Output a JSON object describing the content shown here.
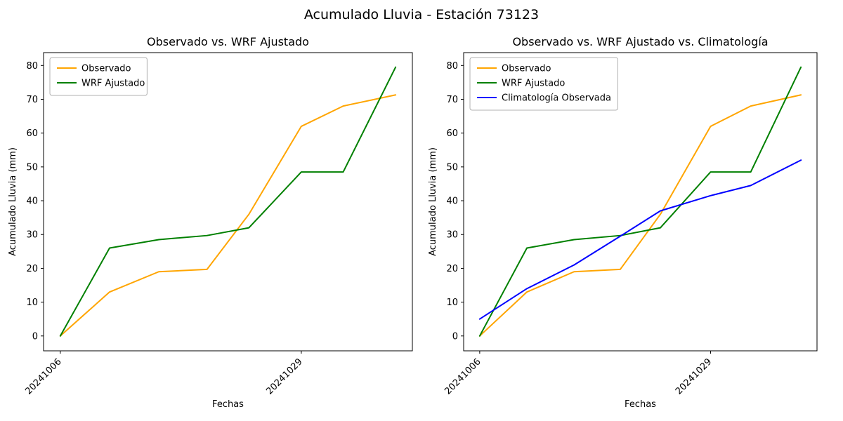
{
  "figure": {
    "title": "Acumulado Lluvia - Estación 73123",
    "background": "#ffffff",
    "text_color": "#000000"
  },
  "chart_data": [
    {
      "type": "line",
      "title": "Observado vs. WRF Ajustado",
      "xlabel": "Fechas",
      "ylabel": "Acumulado Lluvia (mm)",
      "x": [
        0,
        4.7,
        9.4,
        14,
        18,
        23,
        27,
        32
      ],
      "x_ticks": [
        {
          "pos": 0,
          "label": "20241006"
        },
        {
          "pos": 23,
          "label": "20241029"
        }
      ],
      "xlim": [
        -1.6,
        33.6
      ],
      "ylim": [
        -4.4,
        83.8
      ],
      "yticks": [
        0,
        10,
        20,
        30,
        40,
        50,
        60,
        70,
        80
      ],
      "grid": false,
      "legend_position": "upper left",
      "series": [
        {
          "name": "Observado",
          "color": "#FFA500",
          "values": [
            0,
            13,
            19,
            19.7,
            36,
            62,
            68,
            71.3
          ]
        },
        {
          "name": "WRF Ajustado",
          "color": "#008000",
          "values": [
            0,
            26,
            28.5,
            29.7,
            32,
            48.5,
            48.5,
            79.5
          ]
        }
      ]
    },
    {
      "type": "line",
      "title": "Observado vs. WRF Ajustado vs. Climatología",
      "xlabel": "Fechas",
      "ylabel": "Acumulado Lluvia (mm)",
      "x": [
        0,
        4.7,
        9.4,
        14,
        18,
        23,
        27,
        32
      ],
      "x_ticks": [
        {
          "pos": 0,
          "label": "20241006"
        },
        {
          "pos": 23,
          "label": "20241029"
        }
      ],
      "xlim": [
        -1.6,
        33.6
      ],
      "ylim": [
        -4.4,
        83.8
      ],
      "yticks": [
        0,
        10,
        20,
        30,
        40,
        50,
        60,
        70,
        80
      ],
      "grid": false,
      "legend_position": "upper left",
      "series": [
        {
          "name": "Observado",
          "color": "#FFA500",
          "values": [
            0,
            13,
            19,
            19.7,
            36,
            62,
            68,
            71.3
          ]
        },
        {
          "name": "WRF Ajustado",
          "color": "#008000",
          "values": [
            0,
            26,
            28.5,
            29.7,
            32,
            48.5,
            48.5,
            79.5
          ]
        },
        {
          "name": "Climatología Observada",
          "color": "#0000FF",
          "values": [
            5,
            14,
            21,
            29.5,
            37,
            41.5,
            44.5,
            52
          ]
        }
      ]
    }
  ]
}
